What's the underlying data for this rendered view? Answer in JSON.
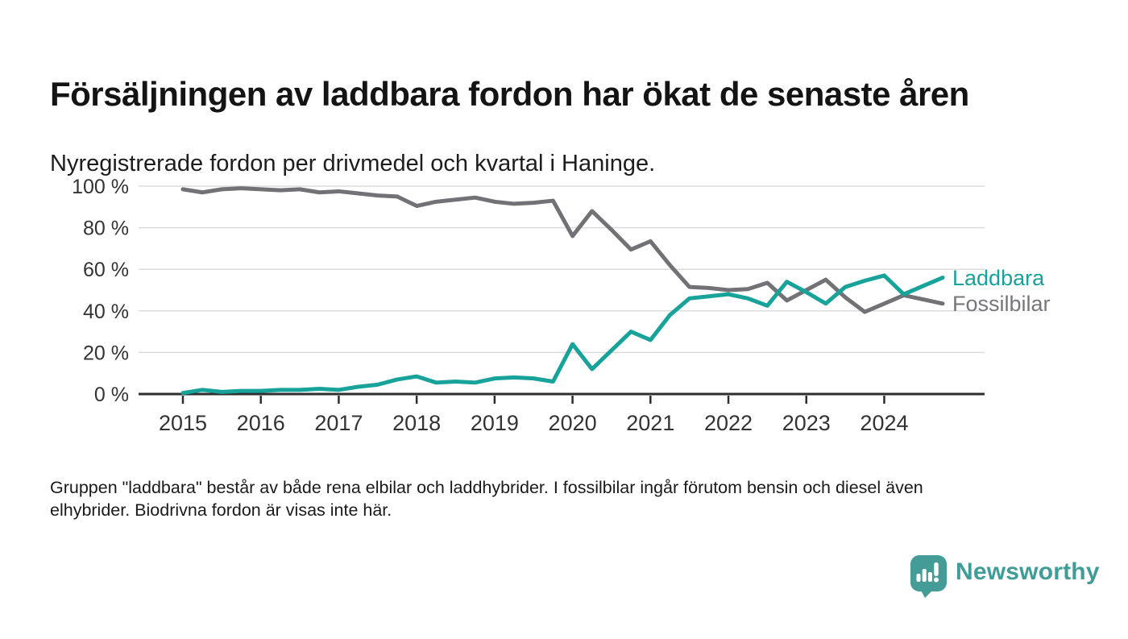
{
  "header": {
    "title": "Försäljningen av laddbara fordon har ökat de senaste åren",
    "subtitle": "Nyregistrerade fordon per drivmedel och kvartal i Haninge."
  },
  "chart_data": {
    "type": "line",
    "x": [
      "2015-Q1",
      "2015-Q2",
      "2015-Q3",
      "2015-Q4",
      "2016-Q1",
      "2016-Q2",
      "2016-Q3",
      "2016-Q4",
      "2017-Q1",
      "2017-Q2",
      "2017-Q3",
      "2017-Q4",
      "2018-Q1",
      "2018-Q2",
      "2018-Q3",
      "2018-Q4",
      "2019-Q1",
      "2019-Q2",
      "2019-Q3",
      "2019-Q4",
      "2020-Q1",
      "2020-Q2",
      "2020-Q3",
      "2020-Q4",
      "2021-Q1",
      "2021-Q2",
      "2021-Q3",
      "2021-Q4",
      "2022-Q1",
      "2022-Q2",
      "2022-Q3",
      "2022-Q4",
      "2023-Q1",
      "2023-Q2",
      "2023-Q3",
      "2023-Q4",
      "2024-Q1",
      "2024-Q2",
      "2024-Q3",
      "2024-Q4"
    ],
    "series": [
      {
        "name": "Laddbara",
        "color": "#17a29a",
        "values": [
          0.5,
          2,
          1,
          1.5,
          1.5,
          2,
          2,
          2.5,
          2,
          3.5,
          4.5,
          7,
          8.5,
          5.5,
          6,
          5.5,
          7.5,
          8,
          7.5,
          6,
          24,
          12,
          21,
          30,
          26,
          38,
          46,
          47,
          48,
          46,
          42.5,
          54,
          49,
          43.5,
          51.5,
          54.5,
          57,
          48,
          52,
          56
        ]
      },
      {
        "name": "Fossilbilar",
        "color": "#717176",
        "values": [
          98.5,
          97,
          98.5,
          99,
          98.5,
          98,
          98.5,
          97,
          97.5,
          96.5,
          95.5,
          95,
          90.5,
          92.5,
          93.5,
          94.5,
          92.5,
          91.5,
          92,
          93,
          76,
          88,
          79,
          69.5,
          73.5,
          62,
          51.5,
          51,
          50,
          50.5,
          53.5,
          45,
          50,
          55,
          46.5,
          39.5,
          43.5,
          47.5,
          45.5,
          43.5
        ]
      }
    ],
    "yticks": [
      0,
      20,
      40,
      60,
      80,
      100
    ],
    "ytick_labels": [
      "0 %",
      "20 %",
      "40 %",
      "60 %",
      "80 %",
      "100 %"
    ],
    "xticks": [
      "2015",
      "2016",
      "2017",
      "2018",
      "2019",
      "2020",
      "2021",
      "2022",
      "2023",
      "2024"
    ],
    "ylim": [
      0,
      100
    ],
    "grid": true,
    "legend_position": "end-of-line",
    "colors": {
      "grid": "#dcdcdc",
      "axis": "#2e2e2e",
      "tick_text": "#333333"
    }
  },
  "footer": {
    "note_line1": "Gruppen \"laddbara\" består av både rena elbilar och laddhybrider. I fossilbilar ingår förutom bensin och diesel även",
    "note_line2": "elhybrider. Biodrivna fordon är visas inte här."
  },
  "branding": {
    "logo_text": "Newsworthy",
    "logo_color": "#3f9d97"
  }
}
